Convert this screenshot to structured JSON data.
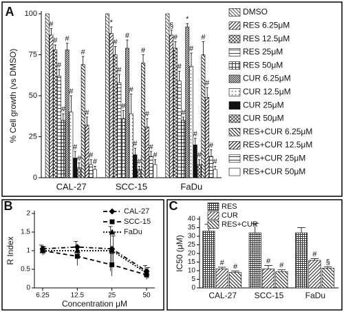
{
  "chart_data": [
    {
      "type": "bar",
      "panel": "A",
      "ylabel": "% Cell growth (vs DMSO)",
      "categories": [
        "CAL-27",
        "SCC-15",
        "FaDu"
      ],
      "ylim": [
        0,
        100
      ],
      "yticks": [
        0,
        25,
        50,
        75,
        100
      ],
      "series": [
        {
          "name": "DMSO",
          "color": "#555555",
          "pattern": "back",
          "values": [
            100,
            100,
            100
          ],
          "errors": [
            0,
            0,
            0
          ],
          "markers": [
            null,
            null,
            null
          ]
        },
        {
          "name": "RES 6.25μM",
          "color": "#222222",
          "pattern": "fwd",
          "values": [
            87,
            88,
            87
          ],
          "errors": [
            4,
            4,
            3
          ],
          "markers": [
            "#",
            "*",
            "§"
          ]
        },
        {
          "name": "RES 12.5μM",
          "color": "#555555",
          "pattern": "checker",
          "values": [
            78,
            75,
            79
          ],
          "errors": [
            3,
            5,
            4
          ],
          "markers": [
            "#",
            "#",
            "#"
          ]
        },
        {
          "name": "RES 25μM",
          "color": "#444444",
          "pattern": "hlines",
          "values": [
            62,
            58,
            59
          ],
          "errors": [
            4,
            5,
            6
          ],
          "markers": [
            "#",
            "#",
            "#"
          ]
        },
        {
          "name": "RES 50μM",
          "color": "#333333",
          "pattern": "cross",
          "values": [
            35,
            36,
            35
          ],
          "errors": [
            4,
            5,
            2
          ],
          "markers": [
            "#",
            "#",
            "#"
          ]
        },
        {
          "name": "CUR 6.25μM",
          "color": "#222222",
          "pattern": "dense",
          "values": [
            78,
            79,
            92
          ],
          "errors": [
            4,
            5,
            2
          ],
          "markers": [
            "#",
            "#",
            "*"
          ]
        },
        {
          "name": "CUR 12.5μM",
          "color": "#666666",
          "pattern": "dots",
          "values": [
            40,
            39,
            68
          ],
          "errors": [
            10,
            12,
            8
          ],
          "markers": [
            "#",
            "#",
            "#"
          ]
        },
        {
          "name": "CUR 25μM",
          "color": "#111111",
          "pattern": "solid",
          "values": [
            12,
            14,
            20
          ],
          "errors": [
            4,
            4,
            4
          ],
          "markers": [
            "#",
            "#",
            "#"
          ]
        },
        {
          "name": "CUR 50μM",
          "color": "#444444",
          "pattern": "xcross",
          "values": [
            6,
            5,
            8
          ],
          "errors": [
            3,
            2,
            3
          ],
          "markers": [
            "#",
            "#",
            "#"
          ]
        },
        {
          "name": "RES+CUR 6.25μM",
          "color": "#111111",
          "pattern": "back",
          "values": [
            69,
            70,
            75
          ],
          "errors": [
            5,
            5,
            8
          ],
          "markers": [
            "#",
            "#",
            "#"
          ]
        },
        {
          "name": "RES+CUR 12.5μM",
          "color": "#000000",
          "pattern": "fwd",
          "values": [
            32,
            31,
            49
          ],
          "errors": [
            5,
            5,
            6
          ],
          "markers": [
            "#",
            "#",
            "#"
          ]
        },
        {
          "name": "RES+CUR 25μM",
          "color": "#333333",
          "pattern": "hlines",
          "values": [
            8,
            13,
            13
          ],
          "errors": [
            3,
            3,
            4
          ],
          "markers": [
            "#",
            "#",
            "#"
          ]
        },
        {
          "name": "RES+CUR 50μM",
          "color": "#000000",
          "pattern": "none",
          "values": [
            5,
            8,
            5
          ],
          "errors": [
            2,
            3,
            2
          ],
          "markers": [
            "#",
            "#",
            "#"
          ]
        }
      ]
    },
    {
      "type": "line",
      "panel": "B",
      "ylabel": "R Index",
      "xlabel": "Concentration μM",
      "categories": [
        "6.25",
        "12.5",
        "25",
        "50"
      ],
      "ylim": [
        0,
        2
      ],
      "yticks": [
        0,
        0.5,
        1,
        1.5,
        2
      ],
      "series": [
        {
          "name": "CAL-27",
          "color": "#000000",
          "marker": "diamond",
          "line": "dash-dot",
          "values": [
            1.05,
            1.1,
            1.05,
            0.45
          ],
          "errors": [
            0.1,
            0.15,
            0.6,
            0.15
          ]
        },
        {
          "name": "SCC-15",
          "color": "#000000",
          "marker": "square",
          "line": "dashed",
          "values": [
            1.0,
            0.85,
            0.62,
            0.35
          ],
          "errors": [
            0.12,
            0.25,
            0.3,
            0.12
          ]
        },
        {
          "name": "FaDu",
          "color": "#000000",
          "marker": "triangle",
          "line": "dotted",
          "values": [
            1.0,
            1.0,
            1.0,
            0.4
          ],
          "errors": [
            0.1,
            0.1,
            0.4,
            0.15
          ]
        }
      ]
    },
    {
      "type": "bar",
      "panel": "C",
      "ylabel": "IC50 (μM)",
      "categories": [
        "CAL-27",
        "SCC-15",
        "FaDu"
      ],
      "ylim": [
        0,
        40
      ],
      "yticks": [
        0,
        5,
        10,
        15,
        20,
        25,
        30,
        35,
        40
      ],
      "series": [
        {
          "name": "RES",
          "color": "#333333",
          "pattern": "grid",
          "values": [
            33,
            32,
            32
          ],
          "errors": [
            4,
            5.5,
            3
          ],
          "markers": [
            null,
            null,
            null
          ]
        },
        {
          "name": "CUR",
          "color": "#222222",
          "pattern": "fwd",
          "values": [
            11,
            11,
            16
          ],
          "errors": [
            1,
            2,
            1
          ],
          "markers": [
            "#",
            "#",
            "#"
          ]
        },
        {
          "name": "RES+CUR",
          "color": "#111111",
          "pattern": "back",
          "values": [
            9,
            9.5,
            11.5
          ],
          "errors": [
            0.8,
            1,
            0.8
          ],
          "markers": [
            "#",
            "#",
            "§"
          ]
        }
      ]
    }
  ]
}
